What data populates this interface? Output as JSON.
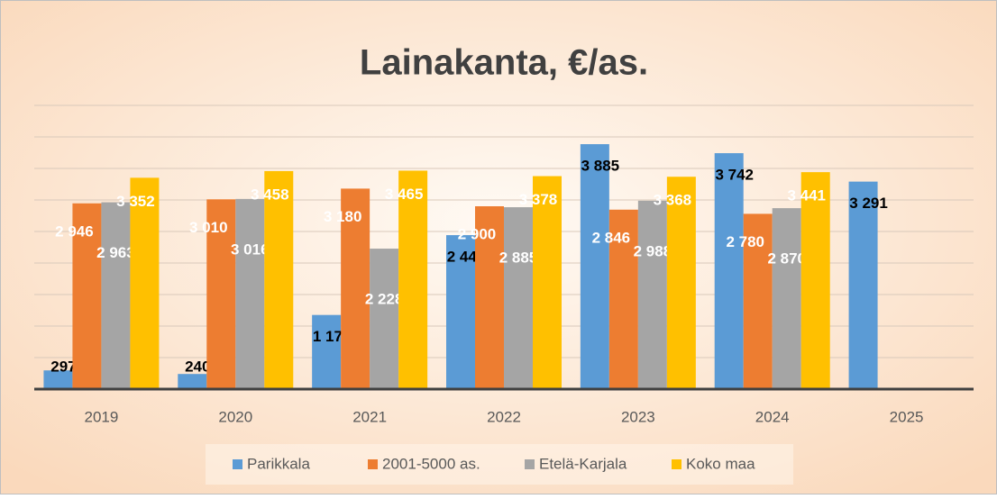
{
  "chart_data": {
    "type": "bar",
    "title": "Lainakanta, €/as.",
    "categories": [
      "2019",
      "2020",
      "2021",
      "2022",
      "2023",
      "2024",
      "2025"
    ],
    "series": [
      {
        "name": "Parikkala",
        "color": "#5b9bd5",
        "values": [
          297,
          240,
          1176,
          2442,
          3885,
          3742,
          3291
        ],
        "value_labels": [
          "297",
          "240",
          "1 176",
          "2 442",
          "3 885",
          "3 742",
          "3 291"
        ]
      },
      {
        "name": "2001-5000 as.",
        "color": "#ed7d31",
        "values": [
          2946,
          3010,
          3180,
          2900,
          2846,
          2780,
          null
        ],
        "value_labels": [
          "2 946",
          "3 010",
          "3 180",
          "2 900",
          "2 846",
          "2 780",
          null
        ]
      },
      {
        "name": "Etelä-Karjala",
        "color": "#a5a5a5",
        "values": [
          2963,
          3016,
          2228,
          2885,
          2988,
          2870,
          null
        ],
        "value_labels": [
          "2 963",
          "3 016",
          "2 228",
          "2 885",
          "2 988",
          "2 870",
          null
        ]
      },
      {
        "name": "Koko maa",
        "color": "#ffc000",
        "values": [
          3352,
          3458,
          3465,
          3378,
          3368,
          3441,
          null
        ],
        "value_labels": [
          "3 352",
          "3 458",
          "3 465",
          "3 378",
          "3 368",
          "3 441",
          null
        ]
      }
    ],
    "ylim": [
      0,
      4500
    ],
    "yticks": [
      0,
      500,
      1000,
      1500,
      2000,
      2500,
      3000,
      3500,
      4000,
      4500
    ],
    "grid": true,
    "legend": "bottom"
  }
}
